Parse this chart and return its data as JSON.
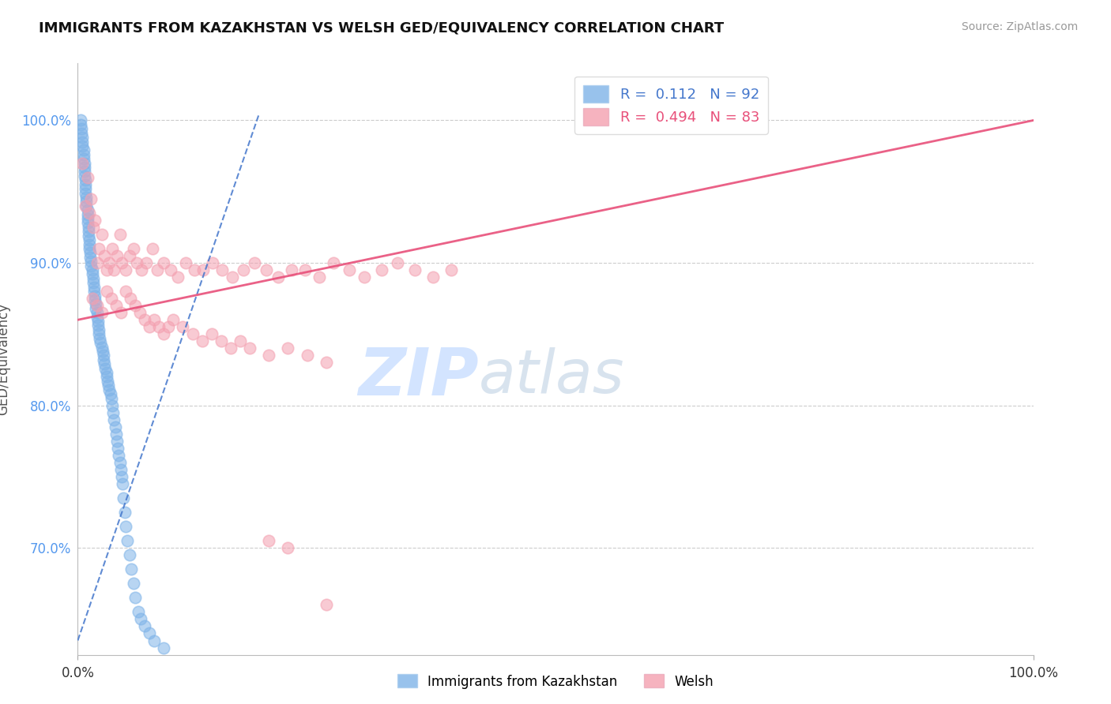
{
  "title": "IMMIGRANTS FROM KAZAKHSTAN VS WELSH GED/EQUIVALENCY CORRELATION CHART",
  "source": "Source: ZipAtlas.com",
  "ylabel": "GED/Equivalency",
  "y_ticks": [
    0.7,
    0.8,
    0.9,
    1.0
  ],
  "y_tick_labels": [
    "70.0%",
    "80.0%",
    "90.0%",
    "100.0%"
  ],
  "x_lim": [
    0.0,
    1.0
  ],
  "y_lim": [
    0.625,
    1.04
  ],
  "legend_r1": "R =  0.112   N = 92",
  "legend_r2": "R =  0.494   N = 83",
  "blue_color": "#7EB3E8",
  "pink_color": "#F4A0B0",
  "blue_line_color": "#4477CC",
  "pink_line_color": "#E8507A",
  "blue_x": [
    0.003,
    0.003,
    0.004,
    0.004,
    0.005,
    0.005,
    0.005,
    0.006,
    0.006,
    0.006,
    0.007,
    0.007,
    0.007,
    0.007,
    0.008,
    0.008,
    0.008,
    0.008,
    0.009,
    0.009,
    0.009,
    0.01,
    0.01,
    0.01,
    0.01,
    0.011,
    0.011,
    0.011,
    0.012,
    0.012,
    0.012,
    0.013,
    0.013,
    0.014,
    0.014,
    0.015,
    0.015,
    0.016,
    0.016,
    0.017,
    0.017,
    0.018,
    0.018,
    0.019,
    0.019,
    0.02,
    0.02,
    0.021,
    0.021,
    0.022,
    0.022,
    0.023,
    0.024,
    0.025,
    0.026,
    0.027,
    0.027,
    0.028,
    0.029,
    0.03,
    0.03,
    0.031,
    0.032,
    0.033,
    0.034,
    0.035,
    0.036,
    0.037,
    0.038,
    0.039,
    0.04,
    0.041,
    0.042,
    0.043,
    0.044,
    0.045,
    0.046,
    0.047,
    0.048,
    0.049,
    0.05,
    0.052,
    0.054,
    0.056,
    0.058,
    0.06,
    0.063,
    0.066,
    0.07,
    0.075,
    0.08,
    0.09
  ],
  "blue_y": [
    1.0,
    0.997,
    0.994,
    0.991,
    0.988,
    0.985,
    0.982,
    0.979,
    0.976,
    0.973,
    0.97,
    0.967,
    0.964,
    0.961,
    0.958,
    0.955,
    0.952,
    0.949,
    0.946,
    0.943,
    0.94,
    0.937,
    0.934,
    0.931,
    0.928,
    0.925,
    0.922,
    0.919,
    0.916,
    0.913,
    0.91,
    0.907,
    0.904,
    0.901,
    0.898,
    0.895,
    0.892,
    0.889,
    0.886,
    0.883,
    0.88,
    0.877,
    0.874,
    0.871,
    0.868,
    0.865,
    0.862,
    0.859,
    0.856,
    0.853,
    0.85,
    0.847,
    0.844,
    0.841,
    0.838,
    0.835,
    0.832,
    0.829,
    0.826,
    0.823,
    0.82,
    0.817,
    0.814,
    0.811,
    0.808,
    0.805,
    0.8,
    0.795,
    0.79,
    0.785,
    0.78,
    0.775,
    0.77,
    0.765,
    0.76,
    0.755,
    0.75,
    0.745,
    0.735,
    0.725,
    0.715,
    0.705,
    0.695,
    0.685,
    0.675,
    0.665,
    0.655,
    0.65,
    0.645,
    0.64,
    0.635,
    0.63
  ],
  "pink_x": [
    0.005,
    0.008,
    0.01,
    0.012,
    0.014,
    0.016,
    0.018,
    0.02,
    0.022,
    0.025,
    0.028,
    0.03,
    0.033,
    0.036,
    0.038,
    0.041,
    0.044,
    0.046,
    0.05,
    0.054,
    0.058,
    0.062,
    0.067,
    0.072,
    0.078,
    0.083,
    0.09,
    0.097,
    0.105,
    0.113,
    0.122,
    0.131,
    0.141,
    0.151,
    0.162,
    0.173,
    0.185,
    0.197,
    0.21,
    0.224,
    0.238,
    0.253,
    0.268,
    0.284,
    0.3,
    0.318,
    0.335,
    0.353,
    0.372,
    0.391,
    0.015,
    0.02,
    0.025,
    0.03,
    0.035,
    0.04,
    0.045,
    0.05,
    0.055,
    0.06,
    0.065,
    0.07,
    0.075,
    0.08,
    0.085,
    0.09,
    0.095,
    0.1,
    0.11,
    0.12,
    0.13,
    0.14,
    0.15,
    0.16,
    0.17,
    0.18,
    0.2,
    0.22,
    0.24,
    0.26,
    0.2,
    0.22,
    0.26
  ],
  "pink_y": [
    0.97,
    0.94,
    0.96,
    0.935,
    0.945,
    0.925,
    0.93,
    0.9,
    0.91,
    0.92,
    0.905,
    0.895,
    0.9,
    0.91,
    0.895,
    0.905,
    0.92,
    0.9,
    0.895,
    0.905,
    0.91,
    0.9,
    0.895,
    0.9,
    0.91,
    0.895,
    0.9,
    0.895,
    0.89,
    0.9,
    0.895,
    0.895,
    0.9,
    0.895,
    0.89,
    0.895,
    0.9,
    0.895,
    0.89,
    0.895,
    0.895,
    0.89,
    0.9,
    0.895,
    0.89,
    0.895,
    0.9,
    0.895,
    0.89,
    0.895,
    0.875,
    0.87,
    0.865,
    0.88,
    0.875,
    0.87,
    0.865,
    0.88,
    0.875,
    0.87,
    0.865,
    0.86,
    0.855,
    0.86,
    0.855,
    0.85,
    0.855,
    0.86,
    0.855,
    0.85,
    0.845,
    0.85,
    0.845,
    0.84,
    0.845,
    0.84,
    0.835,
    0.84,
    0.835,
    0.83,
    0.705,
    0.7,
    0.66
  ],
  "blue_trend_x": [
    0.0,
    0.19
  ],
  "blue_trend_y": [
    0.635,
    1.005
  ],
  "pink_trend_x": [
    0.0,
    1.0
  ],
  "pink_trend_y": [
    0.86,
    1.0
  ]
}
